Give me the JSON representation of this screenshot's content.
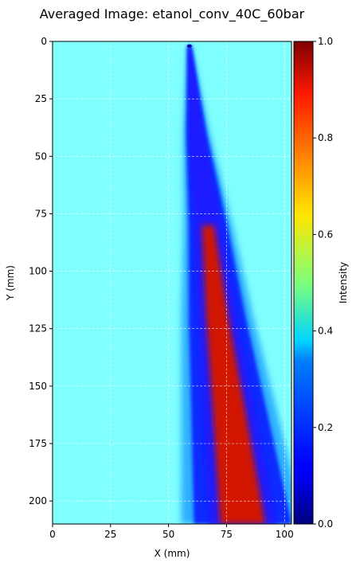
{
  "chart_data": {
    "type": "heatmap",
    "title": "Averaged Image: etanol_conv_40C_60bar",
    "xlabel": "X (mm)",
    "ylabel": "Y (mm)",
    "xlim": [
      0,
      103
    ],
    "ylim": [
      210,
      0
    ],
    "xticks": [
      0,
      25,
      50,
      75,
      100
    ],
    "yticks": [
      0,
      25,
      50,
      75,
      100,
      125,
      150,
      175,
      200
    ],
    "grid": true,
    "colormap": "jet",
    "background_intensity": 0.4,
    "colorbar": {
      "label": "Intensity",
      "range": [
        0,
        1
      ],
      "ticks": [
        "0.0",
        "0.2",
        "0.4",
        "0.6",
        "0.8",
        "1.0"
      ]
    },
    "spray": {
      "origin_x": 59,
      "origin_y": 2,
      "core_centerline": [
        [
          59,
          2
        ],
        [
          62,
          40
        ],
        [
          67,
          80
        ],
        [
          71,
          120
        ],
        [
          76,
          160
        ],
        [
          82,
          210
        ]
      ],
      "min_intensity": 0.8,
      "edge_intensity": 0.1
    }
  }
}
